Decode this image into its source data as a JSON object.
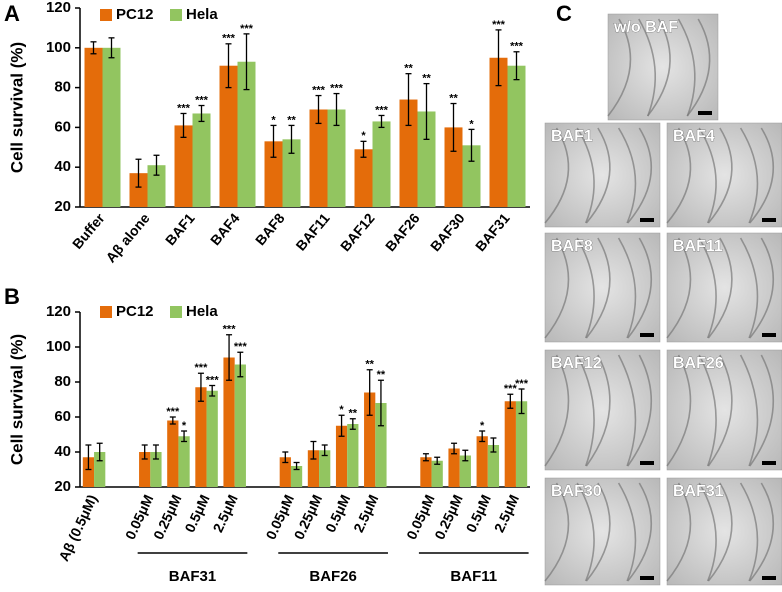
{
  "chart_data": [
    {
      "type": "bar",
      "panel": "A",
      "y_label": "Cell survival (%)",
      "categories": [
        "Buffer",
        "Aβ alone",
        "BAF1",
        "BAF4",
        "BAF8",
        "BAF11",
        "BAF12",
        "BAF26",
        "BAF30",
        "BAF31"
      ],
      "series": [
        {
          "name": "PC12",
          "color": "#e46c0a",
          "values": [
            100,
            37,
            61,
            91,
            53,
            69,
            49,
            74,
            60,
            95
          ],
          "errors": [
            3,
            7,
            6,
            11,
            8,
            7,
            4,
            13,
            12,
            14
          ],
          "significance": [
            null,
            null,
            "***",
            "***",
            "*",
            "***",
            "*",
            "**",
            "**",
            "***"
          ]
        },
        {
          "name": "Hela",
          "color": "#92c560",
          "values": [
            100,
            41,
            67,
            93,
            54,
            69,
            63,
            68,
            51,
            91
          ],
          "errors": [
            5,
            5,
            4,
            14,
            7,
            8,
            3,
            14,
            8,
            7
          ],
          "significance": [
            null,
            null,
            "***",
            "***",
            "**",
            "***",
            "***",
            "**",
            "*",
            "***"
          ]
        }
      ],
      "ylim": [
        20,
        120
      ],
      "yticks": [
        20,
        40,
        60,
        80,
        100,
        120
      ],
      "grid": false
    },
    {
      "type": "bar",
      "panel": "B",
      "y_label": "Cell survival (%)",
      "categories": [
        "Aβ (0.5μM)",
        null,
        "0.05μM",
        "0.25μM",
        "0.5μM",
        "2.5μM",
        null,
        "0.05μM",
        "0.25μM",
        "0.5μM",
        "2.5μM",
        null,
        "0.05μM",
        "0.25μM",
        "0.5μM",
        "2.5μM"
      ],
      "groups": [
        "BAF31",
        "BAF26",
        "BAF11"
      ],
      "series": [
        {
          "name": "PC12",
          "color": "#e46c0a",
          "values": [
            37,
            null,
            40,
            58,
            77,
            94,
            null,
            37,
            41,
            55,
            74,
            null,
            37,
            42,
            49,
            69
          ],
          "errors": [
            7,
            null,
            4,
            2,
            8,
            13,
            null,
            3,
            5,
            6,
            13,
            null,
            2,
            3,
            3,
            4
          ],
          "significance": [
            null,
            null,
            null,
            "***",
            "***",
            "***",
            null,
            null,
            null,
            "*",
            "**",
            null,
            null,
            null,
            "*",
            "***"
          ]
        },
        {
          "name": "Hela",
          "color": "#92c560",
          "values": [
            40,
            null,
            40,
            49,
            75,
            90,
            null,
            32,
            41,
            56,
            68,
            null,
            35,
            38,
            44,
            69
          ],
          "errors": [
            5,
            null,
            4,
            3,
            3,
            7,
            null,
            2,
            3,
            3,
            13,
            null,
            2,
            3,
            4,
            7
          ],
          "significance": [
            null,
            null,
            null,
            "*",
            "***",
            "***",
            null,
            null,
            null,
            "**",
            "**",
            null,
            null,
            null,
            null,
            "***"
          ]
        }
      ],
      "ylim": [
        20,
        120
      ],
      "yticks": [
        20,
        40,
        60,
        80,
        100,
        120
      ],
      "grid": false
    }
  ],
  "panel_c": {
    "letter": "C",
    "images": [
      "w/o BAF",
      "BAF1",
      "BAF4",
      "BAF8",
      "BAF11",
      "BAF12",
      "BAF26",
      "BAF30",
      "BAF31"
    ]
  }
}
